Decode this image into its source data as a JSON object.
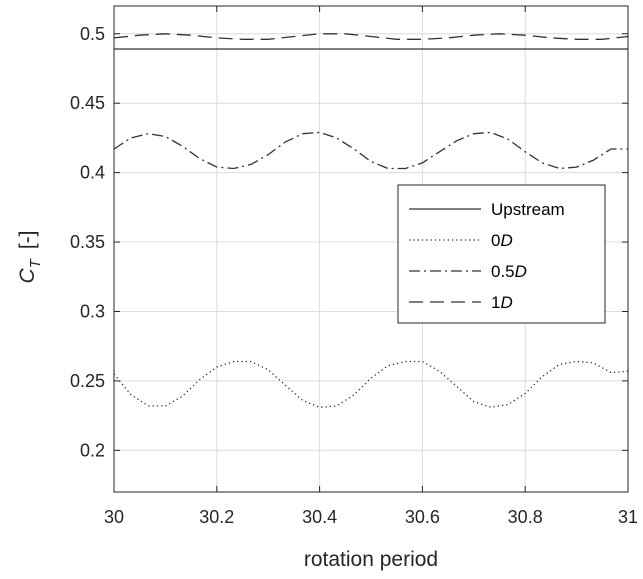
{
  "chart_data": {
    "type": "line",
    "xlabel": "rotation period",
    "ylabel": {
      "main": "C",
      "subscript": "T",
      "unit": "[-]"
    },
    "xlim": [
      30,
      31
    ],
    "ylim": [
      0.17,
      0.52
    ],
    "xticks": [
      30,
      30.2,
      30.4,
      30.6,
      30.8,
      31
    ],
    "xtick_labels": [
      "30",
      "30.2",
      "30.4",
      "30.6",
      "30.8",
      "31"
    ],
    "yticks": [
      0.2,
      0.25,
      0.3,
      0.35,
      0.4,
      0.45,
      0.5
    ],
    "ytick_labels": [
      "0.2",
      "0.25",
      "0.3",
      "0.35",
      "0.4",
      "0.45",
      "0.5"
    ],
    "grid": true,
    "legend_position": "right",
    "line_color": "#333333",
    "series": [
      {
        "name": "Upstream",
        "name_italic": "",
        "style": "solid",
        "x": [
          30,
          31
        ],
        "y": [
          0.489,
          0.489
        ]
      },
      {
        "name": "0",
        "name_italic": "D",
        "style": "dotted",
        "x": [
          30.0,
          30.033,
          30.067,
          30.1,
          30.133,
          30.167,
          30.2,
          30.233,
          30.267,
          30.3,
          30.333,
          30.367,
          30.4,
          30.433,
          30.467,
          30.5,
          30.533,
          30.567,
          30.6,
          30.633,
          30.667,
          30.7,
          30.733,
          30.767,
          30.8,
          30.833,
          30.867,
          30.9,
          30.933,
          30.967,
          31.0
        ],
        "y": [
          0.255,
          0.24,
          0.232,
          0.232,
          0.239,
          0.251,
          0.26,
          0.264,
          0.264,
          0.258,
          0.247,
          0.236,
          0.231,
          0.232,
          0.24,
          0.252,
          0.261,
          0.264,
          0.264,
          0.257,
          0.246,
          0.235,
          0.231,
          0.233,
          0.241,
          0.253,
          0.262,
          0.264,
          0.263,
          0.256,
          0.257
        ]
      },
      {
        "name": "0.5",
        "name_italic": "D",
        "style": "dashdot",
        "x": [
          30.0,
          30.033,
          30.067,
          30.1,
          30.133,
          30.167,
          30.2,
          30.233,
          30.267,
          30.3,
          30.333,
          30.367,
          30.4,
          30.433,
          30.467,
          30.5,
          30.533,
          30.567,
          30.6,
          30.633,
          30.667,
          30.7,
          30.733,
          30.767,
          30.8,
          30.833,
          30.867,
          30.9,
          30.933,
          30.967,
          31.0
        ],
        "y": [
          0.417,
          0.425,
          0.428,
          0.426,
          0.419,
          0.41,
          0.404,
          0.403,
          0.406,
          0.413,
          0.422,
          0.428,
          0.429,
          0.425,
          0.417,
          0.408,
          0.403,
          0.403,
          0.407,
          0.415,
          0.423,
          0.428,
          0.429,
          0.424,
          0.415,
          0.407,
          0.403,
          0.404,
          0.409,
          0.417,
          0.417
        ]
      },
      {
        "name": "1",
        "name_italic": "D",
        "style": "dashed",
        "x": [
          30.0,
          30.05,
          30.1,
          30.15,
          30.2,
          30.25,
          30.3,
          30.35,
          30.4,
          30.45,
          30.5,
          30.55,
          30.6,
          30.65,
          30.7,
          30.75,
          30.8,
          30.85,
          30.9,
          30.95,
          31.0
        ],
        "y": [
          0.497,
          0.499,
          0.5,
          0.499,
          0.497,
          0.496,
          0.496,
          0.498,
          0.5,
          0.5,
          0.498,
          0.496,
          0.496,
          0.497,
          0.499,
          0.5,
          0.499,
          0.497,
          0.496,
          0.496,
          0.498
        ]
      }
    ]
  }
}
